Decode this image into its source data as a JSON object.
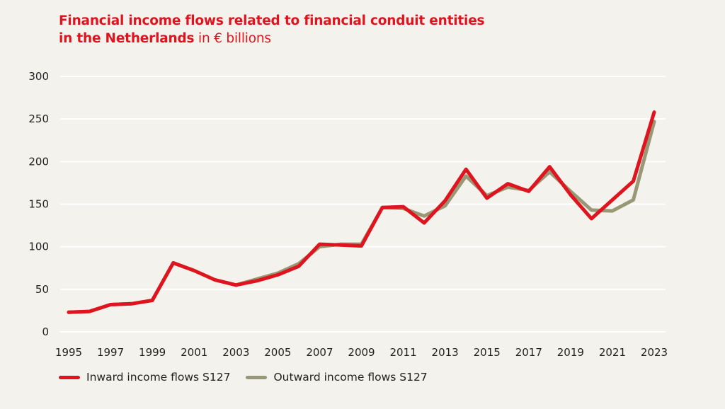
{
  "title": {
    "bold": "Financial income flows related to financial conduit entities",
    "bold_line2": "in the Netherlands",
    "light": "in € billions"
  },
  "colors": {
    "title": "#e0141e",
    "inward": "#e0141e",
    "outward": "#989877",
    "grid": "#ffffff",
    "background": "#f4f2ec"
  },
  "chart_data": {
    "type": "line",
    "x": [
      1995,
      1996,
      1997,
      1998,
      1999,
      2000,
      2001,
      2002,
      2003,
      2004,
      2005,
      2006,
      2007,
      2008,
      2009,
      2010,
      2011,
      2012,
      2013,
      2014,
      2015,
      2016,
      2017,
      2018,
      2019,
      2020,
      2021,
      2022,
      2023
    ],
    "series": [
      {
        "name": "Inward income flows S127",
        "color": "#e0141e",
        "values": [
          23,
          24,
          32,
          33,
          37,
          81,
          72,
          61,
          55,
          60,
          67,
          77,
          103,
          102,
          101,
          146,
          147,
          128,
          154,
          191,
          157,
          174,
          165,
          194,
          161,
          133,
          155,
          177,
          258
        ]
      },
      {
        "name": "Outward income flows S127",
        "color": "#989877",
        "values": [
          23,
          24,
          32,
          33,
          37,
          81,
          72,
          61,
          55,
          62,
          69,
          80,
          100,
          103,
          103,
          146,
          145,
          136,
          148,
          183,
          160,
          170,
          166,
          188,
          165,
          143,
          142,
          155,
          247
        ]
      }
    ],
    "yticks": [
      0,
      50,
      100,
      150,
      200,
      250,
      300
    ],
    "xticks": [
      1995,
      1997,
      1999,
      2001,
      2003,
      2005,
      2007,
      2009,
      2011,
      2013,
      2015,
      2017,
      2019,
      2021,
      2023
    ],
    "ylim": [
      0,
      300
    ],
    "xlim": [
      1995,
      2023
    ],
    "grid": true,
    "legend": "bottom-left"
  }
}
